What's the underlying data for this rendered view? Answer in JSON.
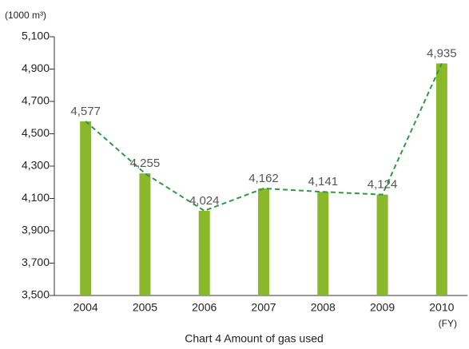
{
  "chart_data": {
    "type": "bar",
    "title": "Chart 4  Amount of gas used",
    "y_unit": "(1000 m³)",
    "x_unit": "(FY)",
    "categories": [
      "2004",
      "2005",
      "2006",
      "2007",
      "2008",
      "2009",
      "2010"
    ],
    "values": [
      4577,
      4255,
      4024,
      4162,
      4141,
      4124,
      4935
    ],
    "value_labels": [
      "4,577",
      "4,255",
      "4,024",
      "4,162",
      "4,141",
      "4,124",
      "4,935"
    ],
    "color": "#8bb82b",
    "line_color": "#2f9a45",
    "ylim": [
      3500,
      5100
    ],
    "yticks": [
      {
        "value": 3500,
        "label": "3,500"
      },
      {
        "value": 3700,
        "label": "3,700"
      },
      {
        "value": 3900,
        "label": "3,900"
      },
      {
        "value": 4100,
        "label": "4,100"
      },
      {
        "value": 4300,
        "label": "4,300"
      },
      {
        "value": 4500,
        "label": "4,500"
      },
      {
        "value": 4700,
        "label": "4,700"
      },
      {
        "value": 4900,
        "label": "4,900"
      },
      {
        "value": 5100,
        "label": "5,100"
      }
    ],
    "grid": false
  }
}
